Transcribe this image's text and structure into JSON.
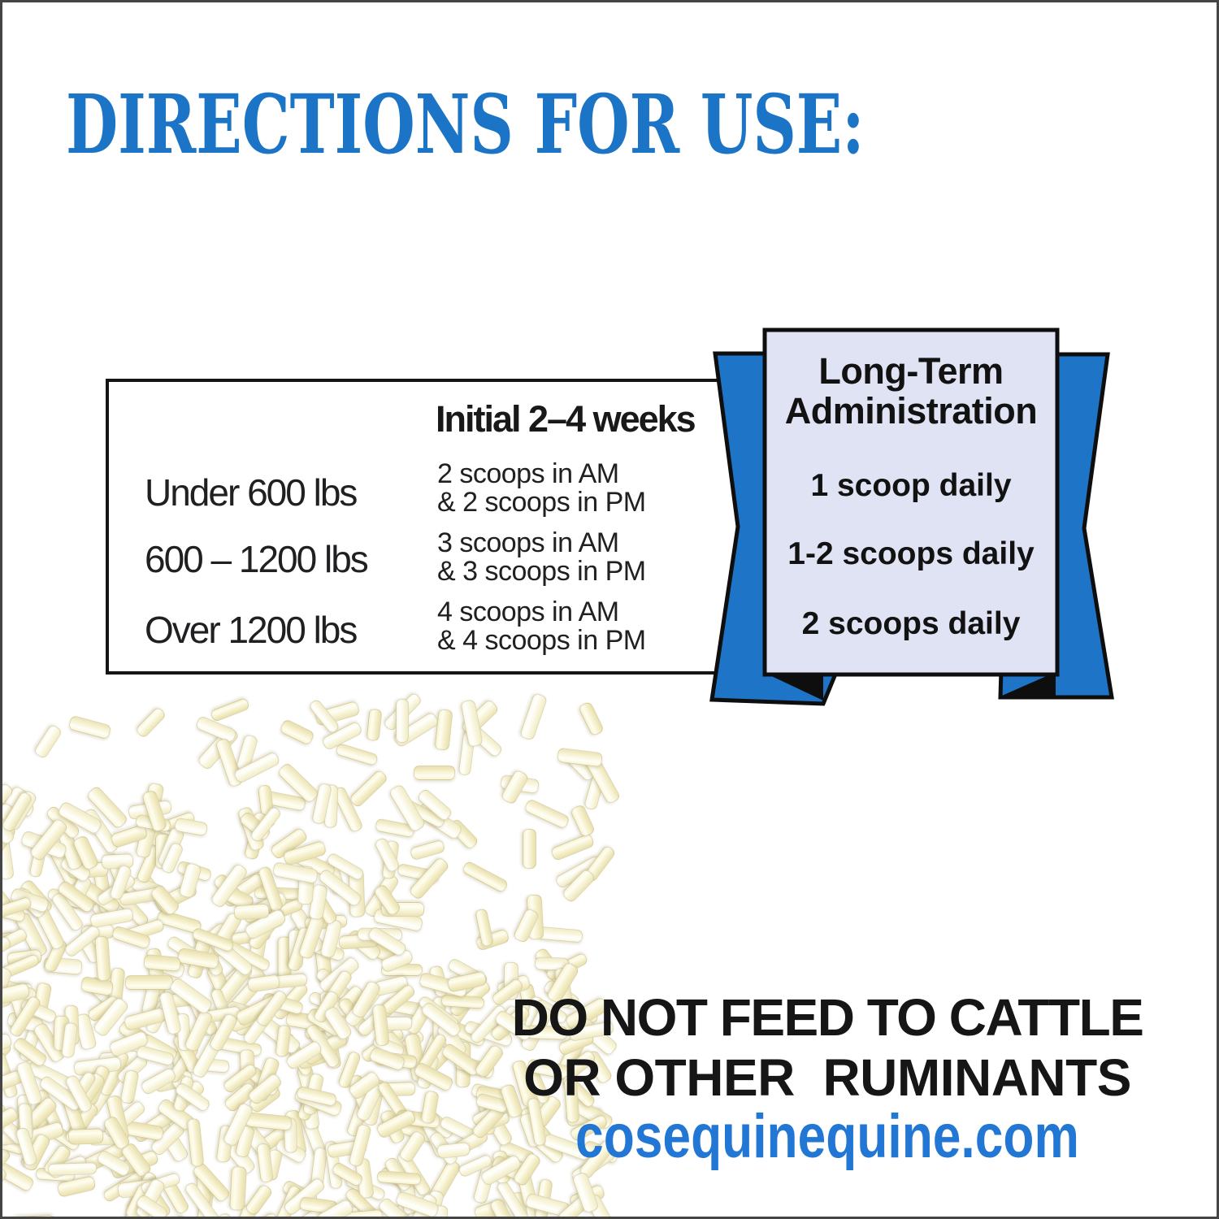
{
  "frame": {
    "border_color": "#454545",
    "background": "#ffffff"
  },
  "title": {
    "text": "DIRECTIONS FOR USE:",
    "color": "#1b74c5"
  },
  "dosing_table": {
    "column_header": "Initial 2–4 weeks",
    "rows": [
      {
        "weight": "Under 600 lbs",
        "dose_am": "2 scoops in AM",
        "dose_pm": "& 2 scoops in PM"
      },
      {
        "weight": "600 – 1200 lbs",
        "dose_am": "3 scoops in AM",
        "dose_pm": "& 3 scoops in PM"
      },
      {
        "weight": "Over 1200 lbs",
        "dose_am": "4 scoops in AM",
        "dose_pm": "& 4 scoops in PM"
      }
    ]
  },
  "ribbon": {
    "heading_line1": "Long-Term",
    "heading_line2": "Administration",
    "items": [
      "1 scoop daily",
      "1-2 scoops daily",
      "2 scoops daily"
    ],
    "wing_color": "#1e74c6",
    "panel_color": "#dfe3f4",
    "outline_color": "#0e0e0e"
  },
  "warning": {
    "line1": "DO NOT FEED TO CATTLE",
    "line2": "OR OTHER  RUMINANTS",
    "website": "cosequinequine.com",
    "text_color": "#161616",
    "website_color": "#2277d4"
  },
  "decor": {
    "pellet_gradients": [
      [
        "#e9e0ad",
        "#f7f3d3",
        "#fffdf0"
      ],
      [
        "#ece4b6",
        "#f9f6dc",
        "#fffef6"
      ],
      [
        "#f1ecc6",
        "#fbf9e6",
        "#ffffff"
      ]
    ],
    "pellet_border": "rgba(176,164,110,0.38)",
    "pile_count": 430,
    "ring_count": 120,
    "scatter_count": 50
  }
}
